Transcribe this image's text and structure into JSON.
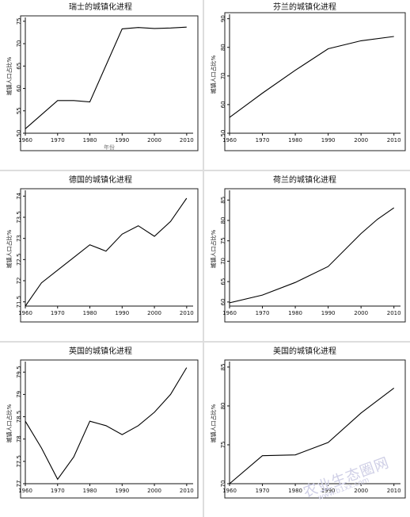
{
  "chart_data": [
    {
      "type": "line",
      "title": "瑞士的城镇化进程",
      "xlabel": "年份",
      "ylabel": "城镇人口占比%",
      "xlim": [
        1960,
        2012
      ],
      "ylim": [
        50,
        75.5
      ],
      "xticks": [
        1960,
        1970,
        1980,
        1990,
        2000,
        2010
      ],
      "yticks": [
        50,
        55,
        60,
        65,
        70,
        75
      ],
      "x": [
        1960,
        1970,
        1975,
        1980,
        1990,
        1995,
        2000,
        2005,
        2010
      ],
      "y": [
        51,
        57.3,
        57.3,
        57.0,
        73.3,
        73.6,
        73.4,
        73.5,
        73.7
      ]
    },
    {
      "type": "line",
      "title": "芬兰的城镇化进程",
      "xlabel": "",
      "ylabel": "城镇人口占比%",
      "xlim": [
        1960,
        2012
      ],
      "ylim": [
        50,
        91
      ],
      "xticks": [
        1960,
        1970,
        1980,
        1990,
        2000,
        2010
      ],
      "yticks": [
        50,
        60,
        70,
        80,
        90
      ],
      "x": [
        1960,
        1970,
        1980,
        1990,
        2000,
        2010
      ],
      "y": [
        55.5,
        64,
        72,
        79.5,
        82.3,
        83.8
      ]
    },
    {
      "type": "line",
      "title": "德国的城镇化进程",
      "xlabel": "",
      "ylabel": "城镇人口占比%",
      "xlim": [
        1960,
        2012
      ],
      "ylim": [
        71.4,
        74.1
      ],
      "xticks": [
        1960,
        1970,
        1980,
        1990,
        2000,
        2010
      ],
      "yticks": [
        71.5,
        72,
        72.5,
        73,
        73.5,
        74
      ],
      "x": [
        1960,
        1965,
        1970,
        1975,
        1980,
        1985,
        1990,
        1995,
        2000,
        2005,
        2010
      ],
      "y": [
        71.4,
        71.95,
        72.25,
        72.55,
        72.85,
        72.7,
        73.1,
        73.3,
        73.05,
        73.4,
        73.95
      ]
    },
    {
      "type": "line",
      "title": "荷兰的城镇化进程",
      "xlabel": "",
      "ylabel": "城镇人口占比%",
      "xlim": [
        1960,
        2012
      ],
      "ylim": [
        59,
        87
      ],
      "xticks": [
        1960,
        1970,
        1980,
        1990,
        2000,
        2010
      ],
      "yticks": [
        60,
        65,
        70,
        75,
        80,
        85
      ],
      "x": [
        1960,
        1970,
        1980,
        1990,
        2000,
        2005,
        2010
      ],
      "y": [
        59.8,
        61.7,
        64.8,
        68.7,
        76.8,
        80.3,
        83.1
      ]
    },
    {
      "type": "line",
      "title": "英国的城镇化进程",
      "xlabel": "",
      "ylabel": "城镇人口占比%",
      "xlim": [
        1960,
        2012
      ],
      "ylim": [
        77,
        79.7
      ],
      "xticks": [
        1960,
        1970,
        1980,
        1990,
        2000,
        2010
      ],
      "yticks": [
        77,
        77.5,
        78,
        78.5,
        79,
        79.5
      ],
      "x": [
        1960,
        1965,
        1970,
        1975,
        1980,
        1985,
        1990,
        1995,
        2000,
        2005,
        2010
      ],
      "y": [
        78.4,
        77.8,
        77.1,
        77.6,
        78.4,
        78.3,
        78.1,
        78.3,
        78.6,
        79.0,
        79.6
      ]
    },
    {
      "type": "line",
      "title": "美国的城镇化进程",
      "xlabel": "",
      "ylabel": "城镇人口占比%",
      "xlim": [
        1960,
        2012
      ],
      "ylim": [
        70,
        85.5
      ],
      "xticks": [
        1960,
        1970,
        1980,
        1990,
        2000,
        2010
      ],
      "yticks": [
        70,
        75,
        80,
        85
      ],
      "x": [
        1960,
        1970,
        1980,
        1990,
        2000,
        2010
      ],
      "y": [
        70.0,
        73.6,
        73.7,
        75.3,
        79.1,
        82.3
      ]
    }
  ],
  "watermark": {
    "text": "农业生态圈网",
    "url": "www.b1xx.com"
  }
}
